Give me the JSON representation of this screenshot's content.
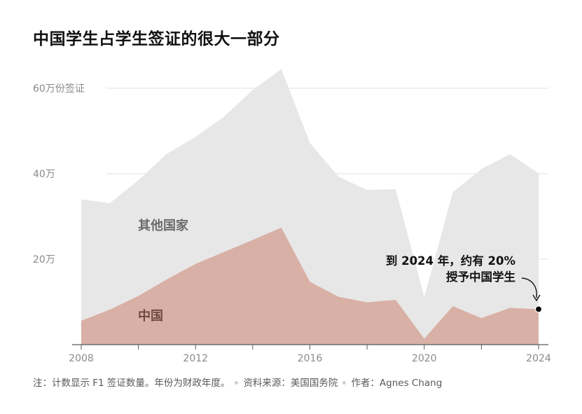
{
  "title": "中国学生占学生签证的很大一部分",
  "chart_data": {
    "type": "area",
    "x": [
      2008,
      2009,
      2010,
      2011,
      2012,
      2013,
      2014,
      2015,
      2016,
      2017,
      2018,
      2019,
      2020,
      2021,
      2022,
      2023,
      2024
    ],
    "series": [
      {
        "name": "其他国家",
        "values": [
          340000,
          331000,
          385000,
          447000,
          486000,
          534000,
          596000,
          645000,
          472000,
          393000,
          362000,
          364000,
          111000,
          357000,
          411000,
          446000,
          401000
        ],
        "color": "#e7e7e7"
      },
      {
        "name": "中国",
        "values": [
          56000,
          82000,
          114000,
          153000,
          189000,
          217000,
          245000,
          274000,
          147000,
          112000,
          99000,
          105000,
          14000,
          90000,
          62000,
          86000,
          83000
        ],
        "color": "#d9b0a5"
      }
    ],
    "yticks": [
      {
        "value": 200000,
        "label": "20万"
      },
      {
        "value": 400000,
        "label": "40万"
      },
      {
        "value": 600000,
        "label": "60万份签证"
      }
    ],
    "xticks": [
      2008,
      2012,
      2016,
      2020,
      2024
    ],
    "xlim": [
      2008,
      2024
    ],
    "ylim": [
      0,
      660000
    ],
    "grid": true,
    "series_labels": [
      "其他国家",
      "中国"
    ],
    "annotation": {
      "line1": "到 2024 年，约有 20%",
      "line2": "授予中国学生",
      "x": 2024,
      "y": 83000
    }
  },
  "footer": {
    "note": "注：计数显示 F1 签证数量。年份为财政年度。",
    "source": "资料来源：美国国务院",
    "author": "作者：Agnes Chang"
  }
}
